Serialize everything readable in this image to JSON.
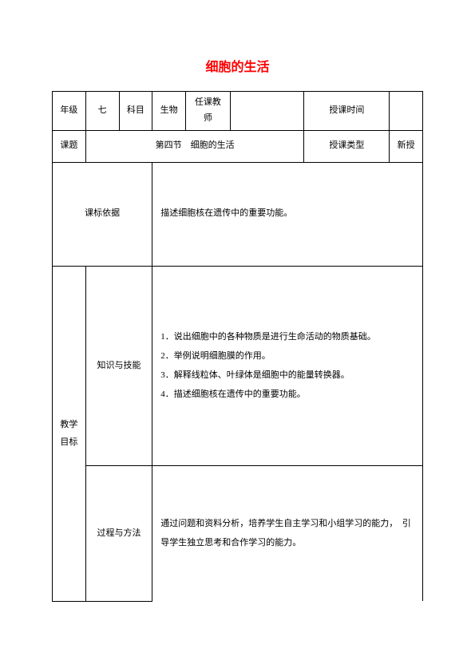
{
  "title": "细胞的生活",
  "header_row": {
    "grade_label": "年级",
    "grade_value": "七",
    "subject_label": "科目",
    "subject_value": "生物",
    "teacher_label": "任课教师",
    "teacher_value": "",
    "time_label": "授课时间",
    "time_value": ""
  },
  "topic_row": {
    "topic_label": "课题",
    "topic_value": "第四节　细胞的生活",
    "type_label": "授课类型",
    "type_value": "新授"
  },
  "standard_row": {
    "label": "课标依据",
    "content": "描述细胞核在遗传中的重要功能。"
  },
  "objectives": {
    "main_label": "教学目标",
    "knowledge": {
      "label": "知识与技能",
      "items": [
        "1．说出细胞中的各种物质是进行生命活动的物质基础。",
        "2．举例说明细胞膜的作用。",
        "3．解释线粒体、叶绿体是细胞中的能量转换器。",
        "4．描述细胞核在遗传中的重要功能。"
      ]
    },
    "process": {
      "label": "过程与方法",
      "content": "通过问题和资料分析，培养学生自主学习和小组学习的能力，　引导学生独立思考和合作学习的能力。"
    }
  }
}
